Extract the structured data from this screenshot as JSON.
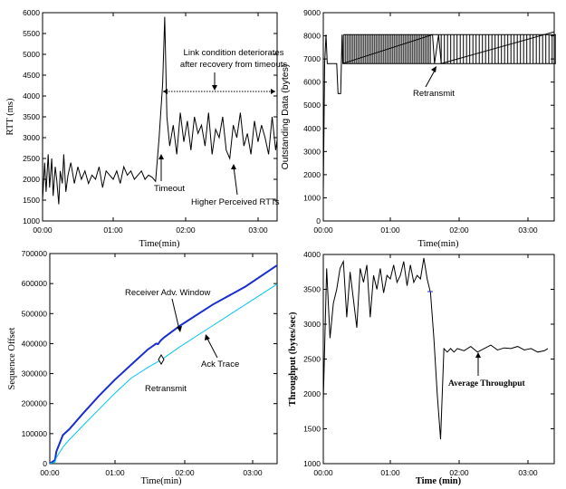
{
  "chart_data": [
    {
      "type": "line",
      "xlabel": "Time(min)",
      "ylabel": "RTT (ms)",
      "ylim": [
        1000,
        6000
      ],
      "xlim": [
        0,
        3.6
      ],
      "xticks": [
        "00:00",
        "01:00",
        "02:00",
        "03:00"
      ],
      "yticks": [
        "1000",
        "1500",
        "2000",
        "2500",
        "3000",
        "3500",
        "4000",
        "4500",
        "5000",
        "5500",
        "6000"
      ],
      "series": [
        {
          "x": [
            0.0,
            0.03,
            0.05,
            0.08,
            0.1,
            0.13,
            0.15,
            0.18,
            0.2,
            0.23,
            0.25,
            0.28,
            0.3,
            0.33,
            0.36,
            0.4,
            0.45,
            0.5,
            0.55,
            0.6,
            0.65,
            0.7,
            0.75,
            0.8,
            0.85,
            0.9,
            0.95,
            1.0,
            1.05,
            1.1,
            1.15,
            1.2,
            1.25,
            1.3,
            1.35,
            1.4,
            1.45,
            1.5,
            1.55,
            1.6,
            1.65,
            1.7,
            1.73,
            1.76,
            1.8,
            1.85,
            1.9,
            1.95,
            2.0,
            2.05,
            2.1,
            2.15,
            2.2,
            2.25,
            2.3,
            2.35,
            2.4,
            2.45,
            2.5,
            2.55,
            2.6,
            2.65,
            2.7,
            2.75,
            2.8,
            2.85,
            2.9,
            2.95,
            3.0,
            3.05,
            3.1,
            3.15,
            3.2,
            3.25,
            3.3,
            3.35,
            3.4
          ],
          "y": [
            1500,
            2400,
            1700,
            2600,
            1800,
            2500,
            1600,
            2300,
            2000,
            1400,
            2200,
            1900,
            2600,
            1700,
            2100,
            2400,
            1900,
            2300,
            2000,
            2200,
            1900,
            2100,
            2000,
            2300,
            1800,
            2200,
            2100,
            2000,
            2200,
            1900,
            2300,
            2100,
            2200,
            2000,
            2100,
            2200,
            2000,
            2100,
            2050,
            1950,
            3000,
            4300,
            5900,
            3500,
            2800,
            3300,
            2600,
            3600,
            2900,
            3400,
            2700,
            3500,
            3100,
            3300,
            2800,
            3600,
            2600,
            3200,
            3000,
            3500,
            2700,
            2500,
            3300,
            3000,
            3600,
            2800,
            3100,
            2600,
            3400,
            2900,
            3300,
            3000,
            2600,
            3500,
            2700,
            3300,
            4150
          ]
        }
      ],
      "annotations": [
        "Link condition deteriorates after recovery from timeouts",
        "Timeout",
        "Higher Perceived RTTs"
      ]
    },
    {
      "type": "line",
      "xlabel": "Time(min)",
      "ylabel": "Outstanding Data (bytes)",
      "ylim": [
        0,
        9000
      ],
      "xlim": [
        0,
        3.6
      ],
      "xticks": [
        "00:00",
        "01:00",
        "02:00",
        "03:00"
      ],
      "yticks": [
        "0",
        "1000",
        "2000",
        "3000",
        "4000",
        "5000",
        "6000",
        "7000",
        "8000",
        "9000"
      ],
      "series": [
        {
          "x": [
            0.0,
            0.02,
            0.04,
            0.06,
            0.2,
            0.22,
            0.26,
            0.28,
            0.29,
            1.63,
            1.66,
            1.72,
            1.76,
            3.48,
            3.58
          ],
          "y": [
            1200,
            6800,
            8050,
            6800,
            6800,
            5500,
            5500,
            8050,
            6800,
            8050,
            6800,
            8050,
            6800,
            8200,
            0
          ]
        }
      ],
      "annotations": [
        "Retransmit"
      ]
    },
    {
      "type": "line",
      "xlabel": "Time(min)",
      "ylabel": "Sequence Offset",
      "ylim": [
        0,
        700000
      ],
      "xlim": [
        0,
        3.6
      ],
      "xticks": [
        "00:00",
        "01:00",
        "02:00",
        "03:00"
      ],
      "yticks": [
        "0",
        "100000",
        "200000",
        "300000",
        "400000",
        "500000",
        "600000",
        "700000"
      ],
      "series": [
        {
          "name": "Receiver Adv. Window",
          "color": "#1a2fcf",
          "x": [
            0.0,
            0.08,
            0.1,
            0.2,
            0.3,
            0.5,
            0.75,
            1.0,
            1.25,
            1.5,
            1.6,
            1.63,
            1.66,
            1.7,
            1.75,
            2.0,
            2.5,
            3.0,
            3.5
          ],
          "y": [
            0,
            12000,
            40000,
            95000,
            115000,
            165000,
            225000,
            280000,
            330000,
            380000,
            395000,
            400000,
            398000,
            410000,
            420000,
            460000,
            530000,
            590000,
            663000
          ]
        },
        {
          "name": "Ack Trace",
          "color": "#00c8f0",
          "x": [
            0.0,
            0.08,
            0.1,
            0.2,
            0.3,
            0.5,
            0.75,
            1.0,
            1.25,
            1.5,
            1.66,
            1.75,
            2.0,
            2.5,
            3.0,
            3.5
          ],
          "y": [
            0,
            5000,
            20000,
            55000,
            80000,
            125000,
            180000,
            235000,
            285000,
            320000,
            340000,
            352000,
            390000,
            460000,
            530000,
            600000
          ]
        }
      ],
      "annotations": [
        "Receiver Adv. Window",
        "Ack Trace",
        "Retransmit"
      ]
    },
    {
      "type": "line",
      "xlabel": "Time (min)",
      "ylabel": "Throughput (bytes/sec)",
      "ylim": [
        1000,
        4000
      ],
      "xlim": [
        0,
        3.5
      ],
      "xticks": [
        "00:00",
        "01:00",
        "02:00",
        "03:00"
      ],
      "yticks": [
        "1000",
        "1500",
        "2000",
        "2500",
        "3000",
        "3500",
        "4000"
      ],
      "series": [
        {
          "x": [
            0.0,
            0.05,
            0.1,
            0.15,
            0.2,
            0.25,
            0.3,
            0.35,
            0.4,
            0.45,
            0.5,
            0.55,
            0.6,
            0.65,
            0.7,
            0.75,
            0.8,
            0.85,
            0.9,
            0.95,
            1.0,
            1.05,
            1.1,
            1.15,
            1.2,
            1.25,
            1.3,
            1.35,
            1.4,
            1.45,
            1.5,
            1.55,
            1.6,
            1.65,
            1.7,
            1.75,
            1.8,
            1.85,
            1.9,
            1.95,
            2.0,
            2.1,
            2.2,
            2.3,
            2.4,
            2.5,
            2.6,
            2.7,
            2.8,
            2.9,
            3.0,
            3.1,
            3.2,
            3.3,
            3.35
          ],
          "y": [
            1900,
            3800,
            2800,
            3300,
            3500,
            3800,
            3900,
            3100,
            3750,
            3350,
            2950,
            3800,
            3600,
            3850,
            3100,
            3700,
            3500,
            3800,
            3450,
            3700,
            3650,
            3850,
            3600,
            3700,
            3900,
            3550,
            3850,
            3600,
            3700,
            3650,
            3950,
            3650,
            3450,
            2800,
            2000,
            1350,
            2650,
            2600,
            2650,
            2600,
            2650,
            2620,
            2680,
            2600,
            2650,
            2700,
            2630,
            2660,
            2650,
            2680,
            2630,
            2650,
            2600,
            2620,
            2650
          ]
        }
      ],
      "annotations": [
        "Average Throughput"
      ]
    }
  ]
}
